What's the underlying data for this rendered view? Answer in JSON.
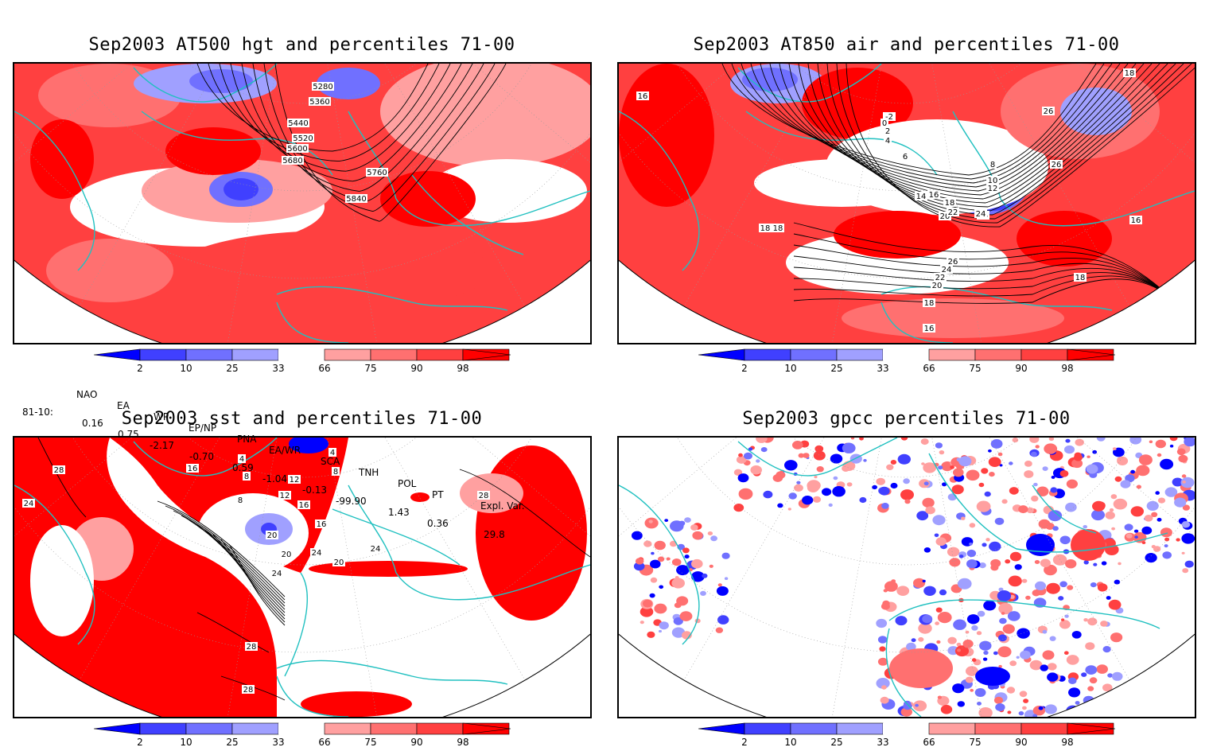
{
  "panels": [
    {
      "id": "hgt",
      "title": "Sep2003 AT500 hgt and percentiles 71-00",
      "contour_labels": [
        "5280",
        "5360",
        "5440",
        "5520",
        "5600",
        "5680",
        "5760",
        "5840"
      ]
    },
    {
      "id": "air",
      "title": "Sep2003 AT850 air and percentiles 71-00",
      "contour_labels": [
        "16",
        "18",
        "22",
        "24",
        "26",
        "18",
        "26",
        "-2",
        "0",
        "2",
        "4",
        "6",
        "8",
        "10",
        "12",
        "14",
        "16",
        "18",
        "20",
        "22",
        "24",
        "18",
        "26",
        "24",
        "22",
        "20",
        "18",
        "16",
        "18",
        "16"
      ]
    },
    {
      "id": "sst",
      "title": "Sep2003 sst and percentiles 71-00",
      "contour_labels": [
        "28",
        "24",
        "16",
        "4",
        "8",
        "8",
        "12",
        "16",
        "16",
        "20",
        "20",
        "24",
        "24",
        "28",
        "28",
        "20",
        "24",
        "28",
        "12",
        "4",
        "8"
      ]
    },
    {
      "id": "gpcc",
      "title": "Sep2003 gpcc percentiles 71-00",
      "contour_labels": []
    }
  ],
  "colorbar": {
    "ticks": [
      "2",
      "10",
      "25",
      "33",
      "66",
      "75",
      "90",
      "98"
    ],
    "colors": {
      "dark_blue": "#0000ff",
      "blue": "#4040ff",
      "mid_blue": "#7070ff",
      "light_blue": "#a0a0ff",
      "white": "#ffffff",
      "light_red": "#ffa0a0",
      "mid_red": "#ff7070",
      "red": "#ff4040",
      "dark_red": "#ff0000",
      "coast": "#20c0c0"
    }
  },
  "indices": {
    "header": [
      "NAO",
      "EA",
      "WP",
      "EP/NP",
      "PNA",
      "EA/WR",
      "SCA",
      "TNH",
      "POL",
      "PT",
      "Expl. Var."
    ],
    "row_label": "81-10:",
    "values": [
      "0.16",
      "0.75",
      "-2.17",
      "-0.70",
      "0.59",
      "-1.04",
      "-0.13",
      "-99.90",
      "1.43",
      "0.36",
      "29.8"
    ]
  }
}
